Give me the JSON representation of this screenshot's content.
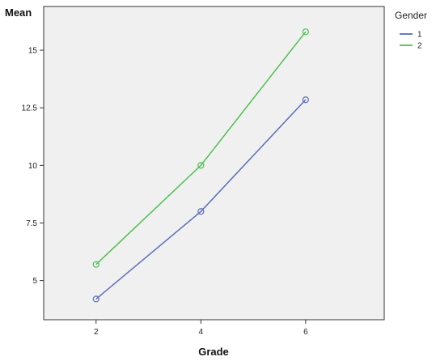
{
  "chart_data": {
    "type": "line",
    "title": "",
    "xlabel": "Grade",
    "ylabel": "Mean",
    "x": [
      2,
      4,
      6
    ],
    "x_ticks": [
      "2",
      "4",
      "6"
    ],
    "xlim": [
      1,
      7.5
    ],
    "y_ticks": [
      "5",
      "7.5",
      "10",
      "12.5",
      "15"
    ],
    "ylim": [
      3.3,
      16.9
    ],
    "grid": false,
    "legend": {
      "title": "Gender",
      "placement": "right"
    },
    "series": [
      {
        "name": "1",
        "values": [
          4.2,
          8.0,
          12.85
        ],
        "color": "#5b6db8"
      },
      {
        "name": "2",
        "values": [
          5.7,
          10.0,
          15.8
        ],
        "color": "#4fbf4f"
      }
    ]
  }
}
